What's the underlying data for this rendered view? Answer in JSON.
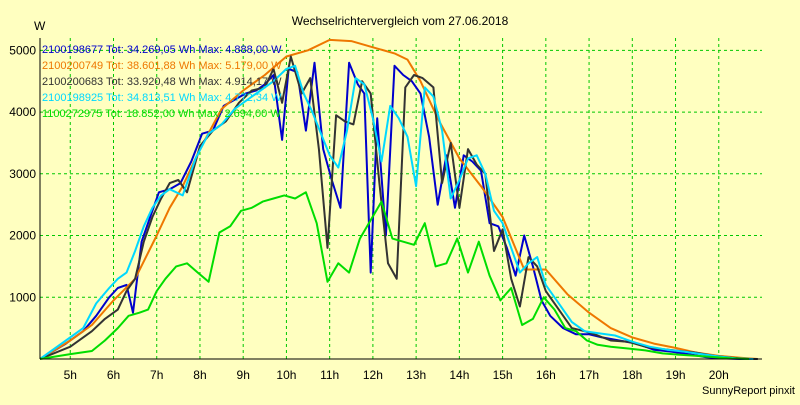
{
  "window": {
    "title": "Wechselrichtervergleich vom 27.06.2018",
    "unit_label": "W",
    "credit": "SunnyReport pinxit"
  },
  "colors": {
    "background": "#ffffc0",
    "grid": "#00c800",
    "axis": "#000000"
  },
  "chart_data": {
    "type": "line",
    "title": "Wechselrichtervergleich vom 27.06.2018",
    "xlabel": "",
    "ylabel": "W",
    "xlim": [
      4.3,
      21.0
    ],
    "ylim": [
      0,
      5200
    ],
    "x_ticks": [
      5,
      6,
      7,
      8,
      9,
      10,
      11,
      12,
      13,
      14,
      15,
      16,
      17,
      18,
      19,
      20
    ],
    "x_tick_labels": [
      "5h",
      "6h",
      "7h",
      "8h",
      "9h",
      "10h",
      "11h",
      "12h",
      "13h",
      "14h",
      "15h",
      "16h",
      "17h",
      "18h",
      "19h",
      "20h"
    ],
    "y_ticks": [
      1000,
      2000,
      3000,
      4000,
      5000
    ],
    "y_tick_labels": [
      "1000",
      "2000",
      "3000",
      "4000",
      "5000"
    ],
    "grid": true,
    "legend": "top-left",
    "series": [
      {
        "name": "2100198677 Tot: 34.269,05 Wh Max: 4.888,00 W",
        "color": "#0000cc",
        "x": [
          4.3,
          4.9,
          5.3,
          5.6,
          5.9,
          6.1,
          6.3,
          6.45,
          6.65,
          6.85,
          7.05,
          7.3,
          7.55,
          7.8,
          8.05,
          8.3,
          8.55,
          8.8,
          9.05,
          9.3,
          9.5,
          9.7,
          9.9,
          10.05,
          10.25,
          10.45,
          10.65,
          10.85,
          11.05,
          11.25,
          11.45,
          11.65,
          11.8,
          11.95,
          12.1,
          12.3,
          12.5,
          12.7,
          12.9,
          13.1,
          13.3,
          13.5,
          13.7,
          13.9,
          14.1,
          14.3,
          14.5,
          14.7,
          14.9,
          15.1,
          15.3,
          15.5,
          15.7,
          15.9,
          16.1,
          16.4,
          16.7,
          17.0,
          17.3,
          17.7,
          18.1,
          18.5,
          18.9,
          19.3,
          19.7,
          20.1,
          20.5,
          20.9
        ],
        "y": [
          0,
          250,
          450,
          700,
          1000,
          1150,
          1200,
          750,
          1900,
          2300,
          2700,
          2750,
          2850,
          3200,
          3650,
          3700,
          4100,
          4200,
          4300,
          4350,
          4450,
          4600,
          3550,
          4700,
          4650,
          3700,
          4800,
          3400,
          2900,
          2450,
          4800,
          4450,
          4300,
          1400,
          3900,
          2000,
          4750,
          4600,
          4500,
          4300,
          3600,
          2500,
          3300,
          2450,
          3300,
          3200,
          3050,
          2200,
          2150,
          1800,
          1350,
          2000,
          1500,
          950,
          700,
          500,
          400,
          400,
          350,
          300,
          250,
          150,
          120,
          80,
          30,
          10,
          0,
          0
        ]
      },
      {
        "name": "2100200749 Tot: 38.601,88 Wh Max: 5.179,00 W",
        "color": "#ee7700",
        "x": [
          4.3,
          5.0,
          5.5,
          6.0,
          6.5,
          7.0,
          7.3,
          7.6,
          8.0,
          8.5,
          9.0,
          9.5,
          10.0,
          10.5,
          11.0,
          11.5,
          12.0,
          12.5,
          12.8,
          13.1,
          13.5,
          14.0,
          14.5,
          15.0,
          15.5,
          16.0,
          16.5,
          17.0,
          17.5,
          18.0,
          18.5,
          19.0,
          19.5,
          20.0,
          20.5,
          20.9
        ],
        "y": [
          0,
          300,
          550,
          950,
          1300,
          2000,
          2450,
          2800,
          3400,
          4050,
          4350,
          4600,
          4900,
          5000,
          5170,
          5150,
          5050,
          4950,
          4850,
          4500,
          3900,
          3250,
          2800,
          2300,
          1450,
          1450,
          1050,
          750,
          500,
          350,
          250,
          180,
          100,
          50,
          20,
          0
        ]
      },
      {
        "name": "2100200683 Tot: 33.920,48 Wh Max: 4.914,17 W",
        "color": "#333333",
        "x": [
          4.3,
          5.0,
          5.5,
          5.8,
          6.1,
          6.3,
          6.5,
          6.7,
          6.9,
          7.1,
          7.3,
          7.5,
          7.7,
          8.0,
          8.3,
          8.6,
          8.9,
          9.2,
          9.5,
          9.7,
          9.9,
          10.1,
          10.35,
          10.55,
          10.75,
          10.95,
          11.15,
          11.35,
          11.55,
          11.75,
          11.95,
          12.15,
          12.35,
          12.55,
          12.75,
          12.95,
          13.15,
          13.4,
          13.6,
          13.8,
          14.0,
          14.2,
          14.4,
          14.6,
          14.8,
          15.0,
          15.2,
          15.4,
          15.6,
          15.8,
          16.0,
          16.3,
          16.6,
          16.9,
          17.2,
          17.5,
          17.9,
          18.3,
          18.7,
          19.1,
          19.5,
          19.9,
          20.3,
          20.7,
          20.9
        ],
        "y": [
          0,
          200,
          450,
          650,
          800,
          1100,
          1300,
          1900,
          2300,
          2600,
          2850,
          2900,
          2700,
          3450,
          3700,
          3850,
          4150,
          4350,
          4400,
          4700,
          4150,
          4900,
          4300,
          4550,
          3400,
          1800,
          3950,
          3850,
          3800,
          4500,
          4300,
          2850,
          1550,
          1300,
          4400,
          4600,
          4550,
          4400,
          2850,
          3500,
          2450,
          3400,
          3150,
          3000,
          1750,
          2100,
          1300,
          850,
          1650,
          1500,
          1100,
          800,
          500,
          450,
          380,
          300,
          280,
          200,
          160,
          130,
          100,
          50,
          20,
          0,
          0
        ]
      },
      {
        "name": "2100198925 Tot: 34.813,51 Wh Max: 4.772,34 W",
        "color": "#00d8ff",
        "x": [
          4.3,
          4.9,
          5.3,
          5.6,
          5.9,
          6.1,
          6.3,
          6.5,
          6.7,
          6.9,
          7.1,
          7.3,
          7.6,
          7.9,
          8.2,
          8.5,
          8.8,
          9.1,
          9.4,
          9.7,
          10.0,
          10.2,
          10.4,
          10.6,
          10.8,
          11.0,
          11.2,
          11.4,
          11.6,
          11.8,
          12.0,
          12.2,
          12.4,
          12.6,
          12.8,
          13.0,
          13.2,
          13.4,
          13.6,
          13.8,
          14.0,
          14.2,
          14.4,
          14.6,
          14.8,
          15.0,
          15.2,
          15.4,
          15.6,
          15.8,
          16.0,
          16.3,
          16.6,
          16.9,
          17.2,
          17.6,
          18.0,
          18.4,
          18.8,
          19.2,
          19.6,
          20.0,
          20.4,
          20.8
        ],
        "y": [
          0,
          300,
          500,
          900,
          1150,
          1300,
          1400,
          1750,
          2150,
          2450,
          2650,
          2750,
          2650,
          3250,
          3650,
          3800,
          4050,
          4200,
          4350,
          4500,
          4700,
          4750,
          4300,
          4000,
          3650,
          3300,
          3100,
          3700,
          4550,
          4450,
          3900,
          3200,
          4100,
          3900,
          3600,
          2800,
          4400,
          4250,
          3700,
          2600,
          2900,
          3250,
          3300,
          3000,
          2400,
          2200,
          1800,
          1400,
          1550,
          1650,
          1200,
          900,
          600,
          450,
          420,
          380,
          280,
          200,
          150,
          120,
          80,
          40,
          10,
          0
        ]
      },
      {
        "name": "1100272975 Tot: 18.852,00 Wh Max: 2.694,00 W",
        "color": "#00dd00",
        "x": [
          4.3,
          5.0,
          5.5,
          5.8,
          6.1,
          6.35,
          6.6,
          6.8,
          7.0,
          7.2,
          7.45,
          7.7,
          7.95,
          8.2,
          8.45,
          8.7,
          8.95,
          9.2,
          9.45,
          9.7,
          9.95,
          10.2,
          10.45,
          10.7,
          10.95,
          11.2,
          11.45,
          11.7,
          11.95,
          12.2,
          12.45,
          12.7,
          12.95,
          13.2,
          13.45,
          13.7,
          13.95,
          14.2,
          14.45,
          14.7,
          14.95,
          15.2,
          15.45,
          15.7,
          15.95,
          16.2,
          16.45,
          16.7,
          16.95,
          17.2,
          17.5,
          17.9,
          18.3,
          18.7,
          19.1,
          19.5,
          19.9,
          20.3,
          20.7
        ],
        "y": [
          0,
          80,
          130,
          300,
          500,
          700,
          750,
          800,
          1100,
          1300,
          1500,
          1550,
          1400,
          1250,
          2050,
          2150,
          2400,
          2450,
          2550,
          2600,
          2650,
          2600,
          2700,
          2200,
          1250,
          1550,
          1400,
          1950,
          2250,
          2550,
          1950,
          1900,
          1850,
          2200,
          1500,
          1550,
          1950,
          1400,
          1900,
          1350,
          950,
          1150,
          550,
          650,
          1000,
          800,
          500,
          450,
          300,
          230,
          200,
          170,
          140,
          90,
          70,
          50,
          30,
          10,
          0
        ]
      }
    ]
  }
}
